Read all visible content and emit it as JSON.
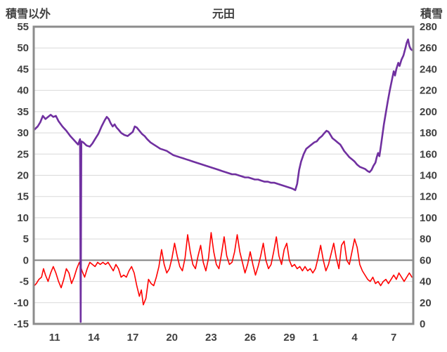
{
  "chart_data": {
    "type": "line",
    "title": "元田",
    "left_axis": {
      "label": "積雪以外",
      "min": -15,
      "max": 55,
      "ticks": [
        55,
        50,
        45,
        40,
        35,
        30,
        25,
        20,
        15,
        10,
        5,
        0,
        -5,
        -10,
        -15
      ]
    },
    "right_axis": {
      "label": "積雪",
      "min": 0,
      "max": 280,
      "ticks": [
        280,
        260,
        240,
        220,
        200,
        180,
        160,
        140,
        120,
        100,
        80,
        60,
        40,
        20,
        0
      ]
    },
    "x_axis": {
      "min": 9.4,
      "max": 38.5,
      "tick_positions": [
        11,
        14,
        17,
        20,
        23,
        26,
        29,
        31,
        34,
        37
      ],
      "tick_labels": [
        "11",
        "14",
        "17",
        "20",
        "23",
        "26",
        "29",
        "1",
        "4",
        "7"
      ]
    },
    "grid": {
      "color": "#d9d9d9",
      "zero_line_color": "#808080",
      "frame_color": "#8c8c8c"
    },
    "legend": "none",
    "series": [
      {
        "name": "積雪",
        "axis": "right",
        "color": "#7030A0",
        "width": 2.6,
        "points": [
          [
            9.45,
            183
          ],
          [
            9.7,
            186
          ],
          [
            9.9,
            190
          ],
          [
            10.1,
            196
          ],
          [
            10.3,
            193
          ],
          [
            10.5,
            195
          ],
          [
            10.7,
            197
          ],
          [
            10.9,
            195
          ],
          [
            11.1,
            196
          ],
          [
            11.3,
            191
          ],
          [
            11.6,
            186
          ],
          [
            11.9,
            182
          ],
          [
            12.2,
            177
          ],
          [
            12.5,
            173
          ],
          [
            12.8,
            169
          ],
          [
            12.95,
            174
          ],
          [
            13.0,
            2
          ],
          [
            13.05,
            172
          ],
          [
            13.2,
            171
          ],
          [
            13.45,
            168
          ],
          [
            13.7,
            167
          ],
          [
            13.9,
            170
          ],
          [
            14.1,
            174
          ],
          [
            14.35,
            179
          ],
          [
            14.6,
            186
          ],
          [
            14.85,
            192
          ],
          [
            15.0,
            195
          ],
          [
            15.15,
            193
          ],
          [
            15.3,
            189
          ],
          [
            15.45,
            186
          ],
          [
            15.6,
            188
          ],
          [
            15.75,
            185
          ],
          [
            15.9,
            183
          ],
          [
            16.1,
            180
          ],
          [
            16.35,
            178
          ],
          [
            16.6,
            177
          ],
          [
            16.8,
            179
          ],
          [
            17.0,
            181
          ],
          [
            17.15,
            186
          ],
          [
            17.3,
            185
          ],
          [
            17.5,
            182
          ],
          [
            17.7,
            179
          ],
          [
            17.9,
            177
          ],
          [
            18.1,
            174
          ],
          [
            18.35,
            171
          ],
          [
            18.6,
            169
          ],
          [
            18.85,
            167
          ],
          [
            19.1,
            165
          ],
          [
            19.35,
            164
          ],
          [
            19.6,
            163
          ],
          [
            19.85,
            161
          ],
          [
            20.1,
            159
          ],
          [
            20.35,
            158
          ],
          [
            20.6,
            157
          ],
          [
            20.85,
            156
          ],
          [
            21.1,
            155
          ],
          [
            21.35,
            154
          ],
          [
            21.6,
            153
          ],
          [
            21.85,
            152
          ],
          [
            22.1,
            151
          ],
          [
            22.35,
            150
          ],
          [
            22.6,
            149
          ],
          [
            22.85,
            148
          ],
          [
            23.1,
            147
          ],
          [
            23.35,
            146
          ],
          [
            23.6,
            145
          ],
          [
            23.85,
            144
          ],
          [
            24.1,
            143
          ],
          [
            24.35,
            142
          ],
          [
            24.6,
            141
          ],
          [
            24.85,
            141
          ],
          [
            25.1,
            140
          ],
          [
            25.35,
            139
          ],
          [
            25.6,
            138
          ],
          [
            25.85,
            138
          ],
          [
            26.1,
            137
          ],
          [
            26.35,
            136
          ],
          [
            26.6,
            136
          ],
          [
            26.85,
            135
          ],
          [
            27.1,
            134
          ],
          [
            27.35,
            134
          ],
          [
            27.6,
            133
          ],
          [
            27.85,
            133
          ],
          [
            28.1,
            132
          ],
          [
            28.35,
            131
          ],
          [
            28.6,
            130
          ],
          [
            28.85,
            129
          ],
          [
            29.1,
            128
          ],
          [
            29.3,
            127
          ],
          [
            29.45,
            126
          ],
          [
            29.6,
            132
          ],
          [
            29.75,
            145
          ],
          [
            29.9,
            153
          ],
          [
            30.1,
            160
          ],
          [
            30.3,
            165
          ],
          [
            30.5,
            167
          ],
          [
            30.7,
            169
          ],
          [
            30.9,
            171
          ],
          [
            31.1,
            172
          ],
          [
            31.3,
            175
          ],
          [
            31.5,
            177
          ],
          [
            31.7,
            180
          ],
          [
            31.85,
            182
          ],
          [
            32.0,
            181
          ],
          [
            32.15,
            178
          ],
          [
            32.3,
            175
          ],
          [
            32.5,
            173
          ],
          [
            32.7,
            171
          ],
          [
            32.9,
            169
          ],
          [
            33.05,
            166
          ],
          [
            33.2,
            163
          ],
          [
            33.4,
            160
          ],
          [
            33.6,
            157
          ],
          [
            33.8,
            155
          ],
          [
            34.0,
            153
          ],
          [
            34.2,
            150
          ],
          [
            34.4,
            148
          ],
          [
            34.6,
            147
          ],
          [
            34.8,
            146
          ],
          [
            35.0,
            144
          ],
          [
            35.15,
            143
          ],
          [
            35.3,
            145
          ],
          [
            35.45,
            149
          ],
          [
            35.6,
            152
          ],
          [
            35.7,
            157
          ],
          [
            35.8,
            161
          ],
          [
            35.9,
            158
          ],
          [
            36.0,
            166
          ],
          [
            36.1,
            175
          ],
          [
            36.25,
            188
          ],
          [
            36.4,
            199
          ],
          [
            36.55,
            210
          ],
          [
            36.7,
            220
          ],
          [
            36.85,
            229
          ],
          [
            37.0,
            238
          ],
          [
            37.1,
            234
          ],
          [
            37.2,
            240
          ],
          [
            37.35,
            246
          ],
          [
            37.45,
            243
          ],
          [
            37.6,
            249
          ],
          [
            37.75,
            253
          ],
          [
            37.9,
            260
          ],
          [
            38.0,
            265
          ],
          [
            38.1,
            268
          ],
          [
            38.2,
            262
          ],
          [
            38.3,
            259
          ],
          [
            38.4,
            258
          ]
        ]
      },
      {
        "name": "積雪以外",
        "axis": "left",
        "color": "#FF0000",
        "width": 1.6,
        "points": [
          [
            9.45,
            -6
          ],
          [
            9.6,
            -5.5
          ],
          [
            9.8,
            -4.5
          ],
          [
            10.0,
            -4
          ],
          [
            10.15,
            -2
          ],
          [
            10.3,
            -3.5
          ],
          [
            10.5,
            -5
          ],
          [
            10.7,
            -3
          ],
          [
            10.9,
            -1.5
          ],
          [
            11.1,
            -3
          ],
          [
            11.3,
            -5
          ],
          [
            11.5,
            -6.5
          ],
          [
            11.7,
            -4.5
          ],
          [
            11.9,
            -2
          ],
          [
            12.1,
            -3
          ],
          [
            12.3,
            -5.5
          ],
          [
            12.5,
            -4
          ],
          [
            12.7,
            -2
          ],
          [
            12.9,
            -0.5
          ],
          [
            13.1,
            -2.5
          ],
          [
            13.3,
            -4
          ],
          [
            13.5,
            -2
          ],
          [
            13.7,
            -0.5
          ],
          [
            13.9,
            -1
          ],
          [
            14.1,
            -1.5
          ],
          [
            14.3,
            -0.5
          ],
          [
            14.5,
            -1
          ],
          [
            14.7,
            -0.5
          ],
          [
            14.9,
            -1
          ],
          [
            15.1,
            -0.5
          ],
          [
            15.3,
            -1.5
          ],
          [
            15.5,
            -2.5
          ],
          [
            15.7,
            -1
          ],
          [
            15.9,
            -2
          ],
          [
            16.1,
            -4
          ],
          [
            16.3,
            -3.5
          ],
          [
            16.5,
            -4
          ],
          [
            16.7,
            -2.5
          ],
          [
            16.9,
            -1.5
          ],
          [
            17.1,
            -3
          ],
          [
            17.3,
            -6
          ],
          [
            17.5,
            -8.5
          ],
          [
            17.65,
            -7
          ],
          [
            17.8,
            -10.5
          ],
          [
            18.0,
            -9
          ],
          [
            18.2,
            -4.5
          ],
          [
            18.4,
            -5.5
          ],
          [
            18.6,
            -6
          ],
          [
            18.8,
            -4
          ],
          [
            19.0,
            -1.5
          ],
          [
            19.2,
            2.5
          ],
          [
            19.4,
            -1
          ],
          [
            19.6,
            -3
          ],
          [
            19.8,
            -2
          ],
          [
            20.0,
            0.5
          ],
          [
            20.2,
            4
          ],
          [
            20.4,
            1
          ],
          [
            20.6,
            -1.5
          ],
          [
            20.8,
            -2.5
          ],
          [
            21.0,
            0.5
          ],
          [
            21.2,
            6
          ],
          [
            21.4,
            2
          ],
          [
            21.6,
            -1
          ],
          [
            21.8,
            -2
          ],
          [
            22.0,
            1
          ],
          [
            22.2,
            3.5
          ],
          [
            22.4,
            -0.5
          ],
          [
            22.6,
            -2.5
          ],
          [
            22.8,
            0.5
          ],
          [
            23.0,
            6.5
          ],
          [
            23.2,
            2
          ],
          [
            23.4,
            -1
          ],
          [
            23.6,
            -2
          ],
          [
            23.8,
            1.5
          ],
          [
            24.0,
            5.5
          ],
          [
            24.2,
            1
          ],
          [
            24.4,
            -1
          ],
          [
            24.6,
            -0.5
          ],
          [
            24.8,
            2
          ],
          [
            25.0,
            6
          ],
          [
            25.2,
            2
          ],
          [
            25.4,
            -0.5
          ],
          [
            25.6,
            -3
          ],
          [
            25.8,
            -1
          ],
          [
            26.0,
            2
          ],
          [
            26.2,
            -1
          ],
          [
            26.4,
            -3.5
          ],
          [
            26.6,
            -1.5
          ],
          [
            26.8,
            1
          ],
          [
            27.0,
            4
          ],
          [
            27.2,
            0
          ],
          [
            27.4,
            -2
          ],
          [
            27.6,
            -1
          ],
          [
            27.8,
            2
          ],
          [
            28.0,
            5.5
          ],
          [
            28.2,
            1
          ],
          [
            28.4,
            -1
          ],
          [
            28.6,
            2.5
          ],
          [
            28.8,
            4
          ],
          [
            29.0,
            0
          ],
          [
            29.2,
            -1.5
          ],
          [
            29.4,
            -1
          ],
          [
            29.6,
            -2
          ],
          [
            29.8,
            -1.5
          ],
          [
            30.0,
            -2.5
          ],
          [
            30.2,
            -1.5
          ],
          [
            30.4,
            -2.5
          ],
          [
            30.6,
            -2
          ],
          [
            30.8,
            -3
          ],
          [
            31.0,
            -2
          ],
          [
            31.2,
            0.5
          ],
          [
            31.4,
            3.5
          ],
          [
            31.6,
            0
          ],
          [
            31.8,
            -2.5
          ],
          [
            32.0,
            -1
          ],
          [
            32.2,
            1.5
          ],
          [
            32.4,
            4
          ],
          [
            32.6,
            0.5
          ],
          [
            32.8,
            -2
          ],
          [
            33.0,
            3.5
          ],
          [
            33.2,
            4.5
          ],
          [
            33.4,
            0
          ],
          [
            33.6,
            -1
          ],
          [
            33.8,
            2
          ],
          [
            34.0,
            5
          ],
          [
            34.2,
            3
          ],
          [
            34.4,
            -1
          ],
          [
            34.6,
            -2.5
          ],
          [
            34.8,
            -3.5
          ],
          [
            35.0,
            -4.5
          ],
          [
            35.2,
            -5
          ],
          [
            35.4,
            -4
          ],
          [
            35.6,
            -5.5
          ],
          [
            35.8,
            -5
          ],
          [
            36.0,
            -6
          ],
          [
            36.2,
            -5
          ],
          [
            36.4,
            -4.5
          ],
          [
            36.6,
            -5.5
          ],
          [
            36.8,
            -4.5
          ],
          [
            37.0,
            -3.5
          ],
          [
            37.2,
            -4.5
          ],
          [
            37.4,
            -3
          ],
          [
            37.6,
            -4
          ],
          [
            37.8,
            -5
          ],
          [
            38.0,
            -4
          ],
          [
            38.2,
            -3
          ],
          [
            38.4,
            -4
          ]
        ]
      }
    ]
  }
}
